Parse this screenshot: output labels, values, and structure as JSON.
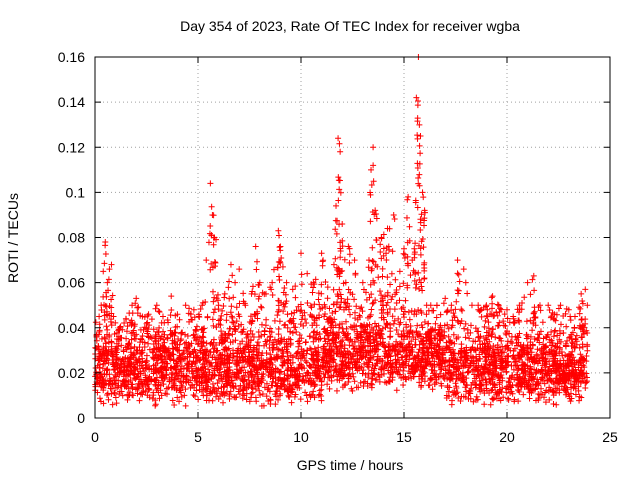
{
  "chart_data": {
    "type": "scatter",
    "title": "Day 354 of 2023, Rate Of TEC Index for receiver wgba",
    "xlabel": "GPS time / hours",
    "ylabel": "ROTI / TECUs",
    "xlim": [
      0,
      25
    ],
    "ylim": [
      0,
      0.16
    ],
    "xticks": [
      "0",
      "5",
      "10",
      "15",
      "20",
      "25"
    ],
    "yticks": [
      "0",
      "0.02",
      "0.04",
      "0.06",
      "0.08",
      "0.1",
      "0.12",
      "0.14",
      "0.16"
    ],
    "grid": true,
    "marker": "+",
    "color": "#ff0000",
    "series": [
      {
        "name": "ROTI",
        "description": "Dense scatter of ROTI samples, mostly between 0.005 and 0.05 TECU/s, with isolated spikes",
        "x": [
          0.2,
          0.3,
          0.4,
          0.5,
          0.6,
          0.7,
          0.8,
          0.9,
          1.2,
          1.5,
          1.8,
          2.0,
          2.3,
          2.6,
          3.0,
          3.3,
          3.7,
          4.0,
          4.4,
          4.8,
          5.2,
          5.4,
          5.6,
          5.7,
          5.8,
          6.0,
          6.3,
          6.6,
          6.8,
          7.0,
          7.3,
          7.6,
          7.8,
          8.0,
          8.3,
          8.6,
          8.9,
          9.0,
          9.3,
          9.6,
          10.0,
          10.3,
          10.6,
          11.0,
          11.3,
          11.6,
          11.7,
          11.8,
          11.9,
          12.0,
          12.3,
          12.6,
          13.0,
          13.3,
          13.4,
          13.5,
          13.6,
          13.9,
          14.2,
          14.5,
          14.8,
          15.0,
          15.2,
          15.4,
          15.5,
          15.6,
          15.7,
          15.8,
          15.9,
          16.0,
          16.1,
          16.3,
          16.6,
          17.0,
          17.3,
          17.6,
          17.9,
          18.0,
          18.3,
          18.6,
          19.0,
          19.3,
          19.6,
          20.0,
          20.3,
          20.6,
          21.0,
          21.3,
          21.6,
          22.0,
          22.3,
          22.6,
          23.0,
          23.3,
          23.6,
          23.8,
          23.9
        ],
        "y": [
          0.045,
          0.05,
          0.065,
          0.078,
          0.06,
          0.066,
          0.068,
          0.045,
          0.04,
          0.044,
          0.05,
          0.053,
          0.045,
          0.046,
          0.05,
          0.045,
          0.054,
          0.046,
          0.05,
          0.048,
          0.05,
          0.07,
          0.104,
          0.09,
          0.08,
          0.05,
          0.055,
          0.068,
          0.06,
          0.066,
          0.05,
          0.055,
          0.076,
          0.06,
          0.055,
          0.06,
          0.083,
          0.076,
          0.06,
          0.057,
          0.073,
          0.064,
          0.06,
          0.073,
          0.058,
          0.068,
          0.094,
          0.124,
          0.118,
          0.086,
          0.076,
          0.07,
          0.06,
          0.07,
          0.11,
          0.12,
          0.092,
          0.08,
          0.084,
          0.09,
          0.065,
          0.075,
          0.098,
          0.07,
          0.075,
          0.142,
          0.16,
          0.125,
          0.1,
          0.092,
          0.05,
          0.05,
          0.05,
          0.053,
          0.05,
          0.07,
          0.066,
          0.06,
          0.05,
          0.05,
          0.05,
          0.054,
          0.05,
          0.048,
          0.045,
          0.05,
          0.06,
          0.063,
          0.05,
          0.05,
          0.046,
          0.05,
          0.048,
          0.045,
          0.055,
          0.057,
          0.05
        ]
      }
    ]
  }
}
